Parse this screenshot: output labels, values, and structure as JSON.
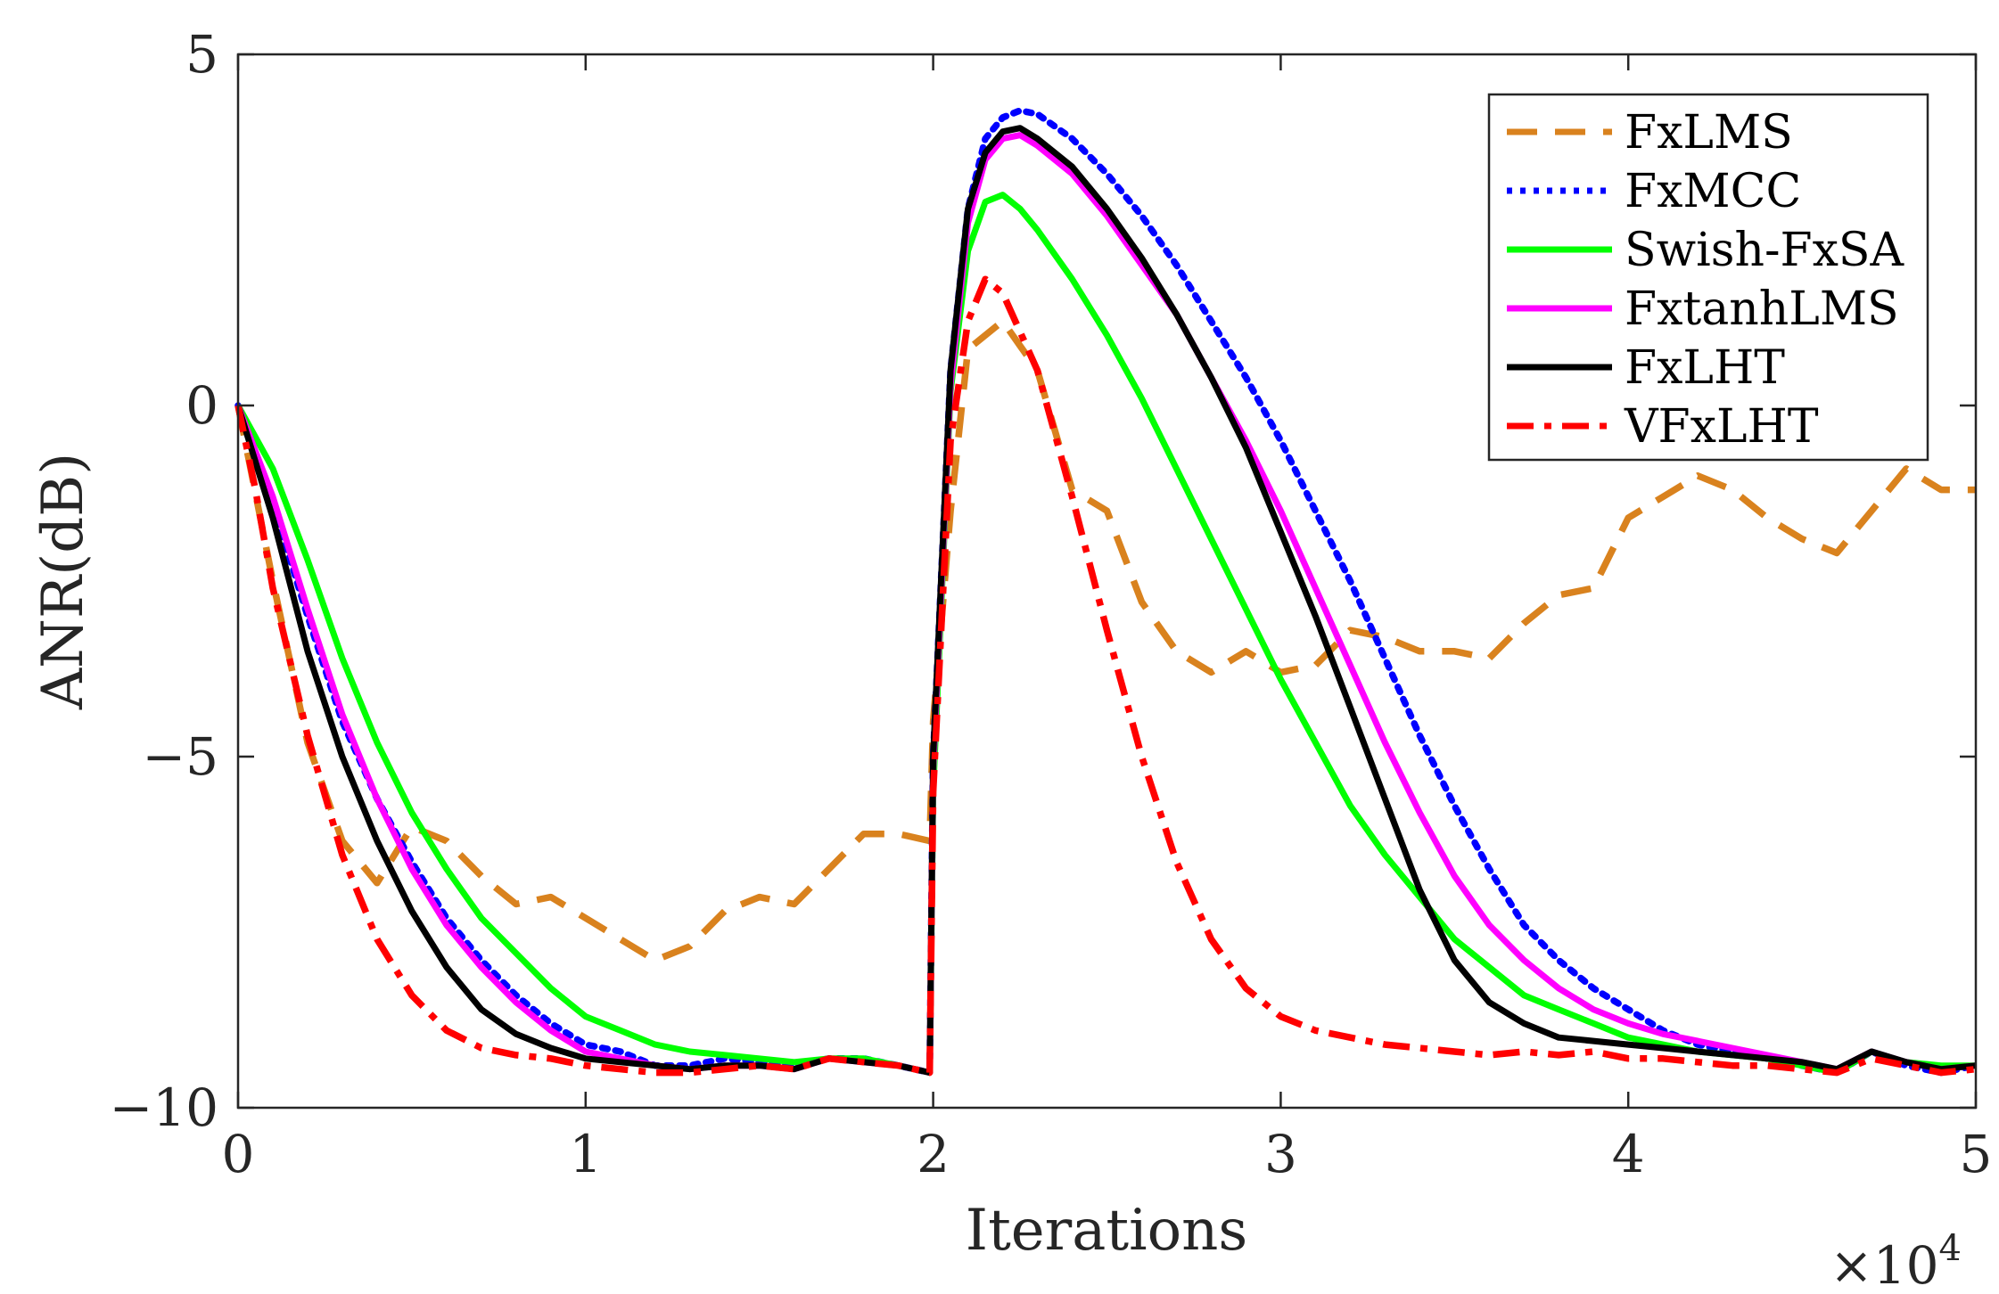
{
  "chart_data": {
    "type": "line",
    "title": "",
    "xlabel": "Iterations",
    "ylabel": "ANR(dB)",
    "x_scale_label": "×10",
    "x_scale_exponent": "4",
    "xlim": [
      0,
      5
    ],
    "ylim": [
      -10,
      5
    ],
    "xticks": [
      0,
      1,
      2,
      3,
      4,
      5
    ],
    "xtick_labels": [
      "0",
      "1",
      "2",
      "3",
      "4",
      "5"
    ],
    "yticks": [
      -10,
      -5,
      0,
      5
    ],
    "ytick_labels": [
      "−10",
      "−5",
      "0",
      "5"
    ],
    "grid": false,
    "legend_position": "top-right",
    "series": [
      {
        "name": "FxLMS",
        "color": "#D9821E",
        "style": "dashed",
        "x": [
          0,
          0.1,
          0.2,
          0.3,
          0.4,
          0.5,
          0.6,
          0.7,
          0.8,
          0.9,
          1.0,
          1.1,
          1.2,
          1.3,
          1.4,
          1.5,
          1.6,
          1.7,
          1.8,
          1.9,
          1.99,
          2.0,
          2.05,
          2.1,
          2.2,
          2.3,
          2.4,
          2.5,
          2.6,
          2.7,
          2.8,
          2.9,
          3.0,
          3.1,
          3.2,
          3.3,
          3.4,
          3.5,
          3.6,
          3.7,
          3.8,
          3.9,
          4.0,
          4.1,
          4.2,
          4.3,
          4.4,
          4.5,
          4.6,
          4.7,
          4.8,
          4.9,
          5.0
        ],
        "values": [
          0,
          -2.5,
          -4.8,
          -6.2,
          -6.8,
          -6.0,
          -6.2,
          -6.7,
          -7.1,
          -7.0,
          -7.3,
          -7.6,
          -7.9,
          -7.7,
          -7.2,
          -7.0,
          -7.1,
          -6.6,
          -6.1,
          -6.1,
          -6.2,
          -4.5,
          -1.5,
          0.8,
          1.2,
          0.5,
          -1.2,
          -1.5,
          -2.8,
          -3.5,
          -3.8,
          -3.5,
          -3.8,
          -3.7,
          -3.2,
          -3.3,
          -3.5,
          -3.5,
          -3.6,
          -3.1,
          -2.7,
          -2.6,
          -1.6,
          -1.3,
          -1.0,
          -1.2,
          -1.6,
          -1.9,
          -2.1,
          -1.5,
          -0.9,
          -1.2,
          -1.2
        ]
      },
      {
        "name": "FxMCC",
        "color": "#0000FF",
        "style": "dotted",
        "x": [
          0,
          0.1,
          0.2,
          0.3,
          0.4,
          0.5,
          0.6,
          0.7,
          0.8,
          0.9,
          1.0,
          1.1,
          1.2,
          1.3,
          1.4,
          1.5,
          1.6,
          1.7,
          1.8,
          1.9,
          1.99,
          2.0,
          2.05,
          2.1,
          2.15,
          2.2,
          2.25,
          2.3,
          2.4,
          2.5,
          2.6,
          2.7,
          2.8,
          2.9,
          3.0,
          3.1,
          3.2,
          3.3,
          3.4,
          3.5,
          3.6,
          3.7,
          3.8,
          3.9,
          4.0,
          4.1,
          4.2,
          4.3,
          4.4,
          4.5,
          4.6,
          4.7,
          4.8,
          4.9,
          5.0
        ],
        "values": [
          0,
          -1.4,
          -3.0,
          -4.5,
          -5.6,
          -6.5,
          -7.3,
          -7.9,
          -8.4,
          -8.8,
          -9.1,
          -9.2,
          -9.4,
          -9.4,
          -9.3,
          -9.35,
          -9.4,
          -9.3,
          -9.3,
          -9.4,
          -9.5,
          -5.0,
          0.5,
          2.8,
          3.8,
          4.1,
          4.2,
          4.15,
          3.8,
          3.3,
          2.7,
          2.0,
          1.2,
          0.4,
          -0.5,
          -1.5,
          -2.5,
          -3.6,
          -4.7,
          -5.7,
          -6.6,
          -7.4,
          -7.9,
          -8.3,
          -8.6,
          -8.9,
          -9.1,
          -9.2,
          -9.3,
          -9.4,
          -9.5,
          -9.2,
          -9.4,
          -9.5,
          -9.4
        ]
      },
      {
        "name": "Swish-FxSA",
        "color": "#00FF00",
        "style": "solid",
        "x": [
          0,
          0.1,
          0.2,
          0.3,
          0.4,
          0.5,
          0.6,
          0.7,
          0.8,
          0.9,
          1.0,
          1.1,
          1.2,
          1.3,
          1.4,
          1.5,
          1.6,
          1.7,
          1.8,
          1.9,
          1.99,
          2.0,
          2.05,
          2.1,
          2.15,
          2.2,
          2.25,
          2.3,
          2.4,
          2.5,
          2.6,
          2.7,
          2.8,
          2.9,
          3.0,
          3.1,
          3.2,
          3.3,
          3.4,
          3.5,
          3.6,
          3.7,
          3.8,
          3.9,
          4.0,
          4.1,
          4.2,
          4.3,
          4.4,
          4.5,
          4.6,
          4.7,
          4.8,
          4.9,
          5.0
        ],
        "values": [
          0,
          -0.9,
          -2.2,
          -3.6,
          -4.8,
          -5.8,
          -6.6,
          -7.3,
          -7.8,
          -8.3,
          -8.7,
          -8.9,
          -9.1,
          -9.2,
          -9.25,
          -9.3,
          -9.35,
          -9.3,
          -9.3,
          -9.4,
          -9.5,
          -5.5,
          0.2,
          2.2,
          2.9,
          3.0,
          2.8,
          2.5,
          1.8,
          1.0,
          0.1,
          -0.9,
          -1.9,
          -2.9,
          -3.9,
          -4.8,
          -5.7,
          -6.4,
          -7.0,
          -7.6,
          -8.0,
          -8.4,
          -8.6,
          -8.8,
          -9.0,
          -9.1,
          -9.2,
          -9.25,
          -9.3,
          -9.4,
          -9.5,
          -9.2,
          -9.35,
          -9.4,
          -9.4
        ]
      },
      {
        "name": "FxtanhLMS",
        "color": "#FF00FF",
        "style": "solid",
        "x": [
          0,
          0.1,
          0.2,
          0.3,
          0.4,
          0.5,
          0.6,
          0.7,
          0.8,
          0.9,
          1.0,
          1.1,
          1.2,
          1.3,
          1.4,
          1.5,
          1.6,
          1.7,
          1.8,
          1.9,
          1.99,
          2.0,
          2.05,
          2.1,
          2.15,
          2.2,
          2.25,
          2.3,
          2.4,
          2.5,
          2.6,
          2.7,
          2.8,
          2.9,
          3.0,
          3.1,
          3.2,
          3.3,
          3.4,
          3.5,
          3.6,
          3.7,
          3.8,
          3.9,
          4.0,
          4.1,
          4.2,
          4.3,
          4.4,
          4.5,
          4.6,
          4.7,
          4.8,
          4.9,
          5.0
        ],
        "values": [
          0,
          -1.3,
          -2.9,
          -4.4,
          -5.6,
          -6.6,
          -7.4,
          -8.0,
          -8.5,
          -8.9,
          -9.2,
          -9.3,
          -9.4,
          -9.45,
          -9.4,
          -9.4,
          -9.45,
          -9.3,
          -9.35,
          -9.4,
          -9.5,
          -5.2,
          0.3,
          2.6,
          3.5,
          3.8,
          3.85,
          3.7,
          3.3,
          2.7,
          2.0,
          1.3,
          0.4,
          -0.5,
          -1.5,
          -2.6,
          -3.7,
          -4.8,
          -5.8,
          -6.7,
          -7.4,
          -7.9,
          -8.3,
          -8.6,
          -8.8,
          -8.95,
          -9.05,
          -9.15,
          -9.25,
          -9.35,
          -9.45,
          -9.2,
          -9.35,
          -9.45,
          -9.4
        ]
      },
      {
        "name": "FxLHT",
        "color": "#000000",
        "style": "solid",
        "x": [
          0,
          0.1,
          0.2,
          0.3,
          0.4,
          0.5,
          0.6,
          0.7,
          0.8,
          0.9,
          1.0,
          1.1,
          1.2,
          1.3,
          1.4,
          1.5,
          1.6,
          1.7,
          1.8,
          1.9,
          1.99,
          2.0,
          2.05,
          2.1,
          2.15,
          2.2,
          2.25,
          2.3,
          2.4,
          2.5,
          2.6,
          2.7,
          2.8,
          2.9,
          3.0,
          3.1,
          3.2,
          3.3,
          3.4,
          3.5,
          3.6,
          3.7,
          3.8,
          3.9,
          4.0,
          4.1,
          4.2,
          4.3,
          4.4,
          4.5,
          4.6,
          4.7,
          4.8,
          4.9,
          5.0
        ],
        "values": [
          0,
          -1.6,
          -3.5,
          -5.0,
          -6.2,
          -7.2,
          -8.0,
          -8.6,
          -8.95,
          -9.15,
          -9.3,
          -9.35,
          -9.4,
          -9.45,
          -9.4,
          -9.4,
          -9.45,
          -9.3,
          -9.35,
          -9.4,
          -9.5,
          -5.0,
          0.5,
          2.8,
          3.6,
          3.9,
          3.95,
          3.8,
          3.4,
          2.8,
          2.1,
          1.3,
          0.4,
          -0.6,
          -1.8,
          -3.0,
          -4.3,
          -5.6,
          -6.9,
          -7.9,
          -8.5,
          -8.8,
          -9.0,
          -9.05,
          -9.1,
          -9.15,
          -9.2,
          -9.25,
          -9.3,
          -9.35,
          -9.45,
          -9.2,
          -9.35,
          -9.45,
          -9.4
        ]
      },
      {
        "name": "VFxLHT",
        "color": "#FF0000",
        "style": "dashdot",
        "x": [
          0,
          0.05,
          0.1,
          0.2,
          0.3,
          0.4,
          0.5,
          0.6,
          0.7,
          0.8,
          0.9,
          1.0,
          1.1,
          1.2,
          1.3,
          1.4,
          1.5,
          1.6,
          1.7,
          1.8,
          1.9,
          1.99,
          2.0,
          2.05,
          2.1,
          2.15,
          2.2,
          2.3,
          2.4,
          2.5,
          2.6,
          2.7,
          2.8,
          2.9,
          3.0,
          3.1,
          3.2,
          3.3,
          3.4,
          3.5,
          3.6,
          3.7,
          3.8,
          3.9,
          4.0,
          4.1,
          4.2,
          4.3,
          4.4,
          4.5,
          4.6,
          4.7,
          4.8,
          4.9,
          5.0
        ],
        "values": [
          0,
          -1.2,
          -2.6,
          -4.7,
          -6.4,
          -7.6,
          -8.4,
          -8.9,
          -9.15,
          -9.25,
          -9.3,
          -9.4,
          -9.45,
          -9.5,
          -9.5,
          -9.45,
          -9.4,
          -9.45,
          -9.3,
          -9.35,
          -9.4,
          -9.5,
          -5.5,
          -0.5,
          1.2,
          1.8,
          1.6,
          0.5,
          -1.3,
          -3.2,
          -5.0,
          -6.5,
          -7.6,
          -8.3,
          -8.7,
          -8.9,
          -9.0,
          -9.1,
          -9.15,
          -9.2,
          -9.25,
          -9.2,
          -9.25,
          -9.2,
          -9.3,
          -9.3,
          -9.35,
          -9.4,
          -9.4,
          -9.45,
          -9.5,
          -9.3,
          -9.4,
          -9.5,
          -9.45
        ]
      }
    ]
  }
}
